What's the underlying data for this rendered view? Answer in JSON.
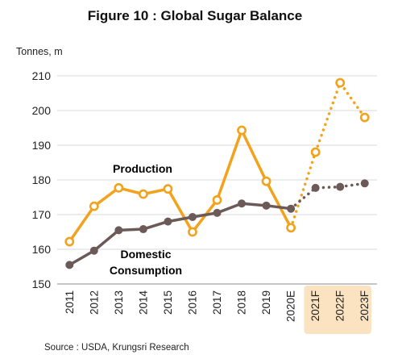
{
  "title": "Figure 10 : Global Sugar Balance",
  "unit_label": "Tonnes, m",
  "source": "Source : USDA, Krungsri Research",
  "colors": {
    "production": "#f2a21c",
    "consumption": "#6b5a58",
    "forecast_band": "#fbe3c2",
    "grid": "#d9d9d9",
    "axis": "#8c8c8c"
  },
  "chart_data": {
    "type": "line",
    "title": "Figure 10 : Global Sugar Balance",
    "ylabel": "Tonnes, m",
    "xlabel": "",
    "ylim": [
      150,
      210
    ],
    "yticks": [
      150,
      160,
      170,
      180,
      190,
      200,
      210
    ],
    "grid": true,
    "categories": [
      "2011",
      "2012",
      "2013",
      "2014",
      "2015",
      "2016",
      "2017",
      "2018",
      "2019",
      "2020E",
      "2021F",
      "2022F",
      "2023F"
    ],
    "forecast_categories": [
      "2021F",
      "2022F",
      "2023F"
    ],
    "series": [
      {
        "name": "Production",
        "key": "production",
        "values": [
          162.2,
          172.4,
          177.7,
          175.9,
          177.4,
          165.0,
          174.2,
          194.3,
          179.6,
          166.2,
          188.0,
          208.0,
          198.0
        ]
      },
      {
        "name": "Domestic Consumption",
        "label_lines": [
          "Domestic",
          "Consumption"
        ],
        "key": "consumption",
        "values": [
          155.5,
          159.6,
          165.5,
          165.8,
          168.0,
          169.3,
          170.5,
          173.2,
          172.6,
          171.7,
          177.7,
          178.0,
          179.0
        ]
      }
    ]
  }
}
